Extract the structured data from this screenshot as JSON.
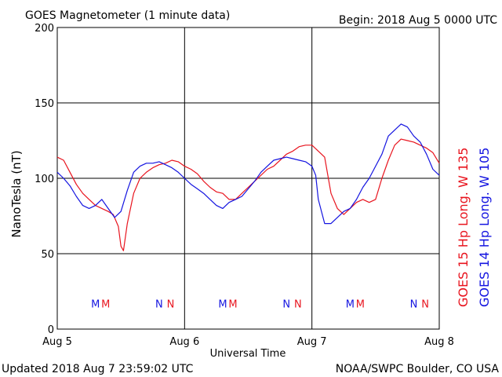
{
  "header": {
    "title": "GOES Magnetometer (1 minute data)",
    "begin": "Begin:  2018 Aug 5 0000 UTC"
  },
  "footer": {
    "updated": "Updated 2018 Aug  7 23:59:02 UTC",
    "source": "NOAA/SWPC Boulder, CO USA"
  },
  "colors": {
    "goes15": "#e8141e",
    "goes14": "#1414e0",
    "grid": "#000000",
    "background": "#ffffff"
  },
  "chart_data": {
    "type": "line",
    "title": "GOES Magnetometer (1 minute data)",
    "xlabel": "Universal Time",
    "ylabel": "NanoTesla (nT)",
    "xlim": [
      0,
      3
    ],
    "ylim": [
      0,
      200
    ],
    "y_ticks": [
      0,
      50,
      100,
      150,
      200
    ],
    "x_ticks": [
      0,
      1,
      2,
      3
    ],
    "x_tick_labels": [
      "Aug 5",
      "Aug 6",
      "Aug 7",
      "Aug 8"
    ],
    "grid": true,
    "series": [
      {
        "name": "GOES 15 Hp  Long. W 135",
        "color": "#e8141e",
        "x": [
          0,
          0.05,
          0.1,
          0.15,
          0.2,
          0.25,
          0.3,
          0.35,
          0.4,
          0.44,
          0.48,
          0.5,
          0.52,
          0.55,
          0.6,
          0.65,
          0.7,
          0.75,
          0.8,
          0.85,
          0.9,
          0.95,
          1.0,
          1.05,
          1.1,
          1.15,
          1.2,
          1.25,
          1.3,
          1.35,
          1.4,
          1.45,
          1.5,
          1.55,
          1.6,
          1.65,
          1.7,
          1.75,
          1.8,
          1.85,
          1.9,
          1.95,
          2.0,
          2.05,
          2.1,
          2.15,
          2.2,
          2.25,
          2.3,
          2.35,
          2.4,
          2.45,
          2.5,
          2.55,
          2.6,
          2.65,
          2.7,
          2.75,
          2.8,
          2.85,
          2.9,
          2.95,
          3.0
        ],
        "y": [
          114,
          112,
          104,
          96,
          90,
          86,
          82,
          80,
          78,
          76,
          68,
          55,
          52,
          70,
          90,
          100,
          104,
          107,
          109,
          110,
          112,
          111,
          108,
          106,
          103,
          98,
          94,
          91,
          90,
          86,
          86,
          90,
          94,
          98,
          102,
          106,
          108,
          112,
          116,
          118,
          121,
          122,
          122,
          118,
          114,
          90,
          80,
          76,
          80,
          84,
          86,
          84,
          86,
          100,
          112,
          122,
          126,
          125,
          124,
          122,
          120,
          117,
          110
        ]
      },
      {
        "name": "GOES 14 Hp  Long. W 105",
        "color": "#1414e0",
        "x": [
          0,
          0.05,
          0.1,
          0.15,
          0.2,
          0.25,
          0.3,
          0.35,
          0.4,
          0.45,
          0.5,
          0.55,
          0.6,
          0.65,
          0.7,
          0.75,
          0.8,
          0.85,
          0.9,
          0.95,
          1.0,
          1.05,
          1.1,
          1.15,
          1.2,
          1.25,
          1.3,
          1.35,
          1.4,
          1.45,
          1.5,
          1.55,
          1.6,
          1.65,
          1.7,
          1.75,
          1.8,
          1.85,
          1.9,
          1.95,
          2.0,
          2.03,
          2.05,
          2.1,
          2.15,
          2.2,
          2.25,
          2.3,
          2.35,
          2.4,
          2.45,
          2.5,
          2.55,
          2.6,
          2.65,
          2.7,
          2.75,
          2.8,
          2.85,
          2.9,
          2.95,
          3.0
        ],
        "y": [
          104,
          100,
          95,
          88,
          82,
          80,
          82,
          86,
          80,
          74,
          78,
          92,
          104,
          108,
          110,
          110,
          111,
          109,
          107,
          104,
          100,
          96,
          93,
          90,
          86,
          82,
          80,
          84,
          86,
          88,
          93,
          98,
          104,
          108,
          112,
          113,
          114,
          113,
          112,
          111,
          108,
          102,
          86,
          70,
          70,
          74,
          78,
          80,
          86,
          94,
          100,
          108,
          116,
          128,
          132,
          136,
          134,
          128,
          124,
          116,
          106,
          102
        ]
      }
    ],
    "event_markers": [
      {
        "x": 0.3,
        "label": "M",
        "series": "GOES 14 Hp  Long. W 105"
      },
      {
        "x": 0.38,
        "label": "M",
        "series": "GOES 15 Hp  Long. W 135"
      },
      {
        "x": 0.8,
        "label": "N",
        "series": "GOES 14 Hp  Long. W 105"
      },
      {
        "x": 0.89,
        "label": "N",
        "series": "GOES 15 Hp  Long. W 135"
      },
      {
        "x": 1.3,
        "label": "M",
        "series": "GOES 14 Hp  Long. W 105"
      },
      {
        "x": 1.38,
        "label": "M",
        "series": "GOES 15 Hp  Long. W 135"
      },
      {
        "x": 1.8,
        "label": "N",
        "series": "GOES 14 Hp  Long. W 105"
      },
      {
        "x": 1.89,
        "label": "N",
        "series": "GOES 15 Hp  Long. W 135"
      },
      {
        "x": 2.3,
        "label": "M",
        "series": "GOES 14 Hp  Long. W 105"
      },
      {
        "x": 2.38,
        "label": "M",
        "series": "GOES 15 Hp  Long. W 135"
      },
      {
        "x": 2.8,
        "label": "N",
        "series": "GOES 14 Hp  Long. W 105"
      },
      {
        "x": 2.89,
        "label": "N",
        "series": "GOES 15 Hp  Long. W 135"
      }
    ],
    "marker_level": 17
  }
}
